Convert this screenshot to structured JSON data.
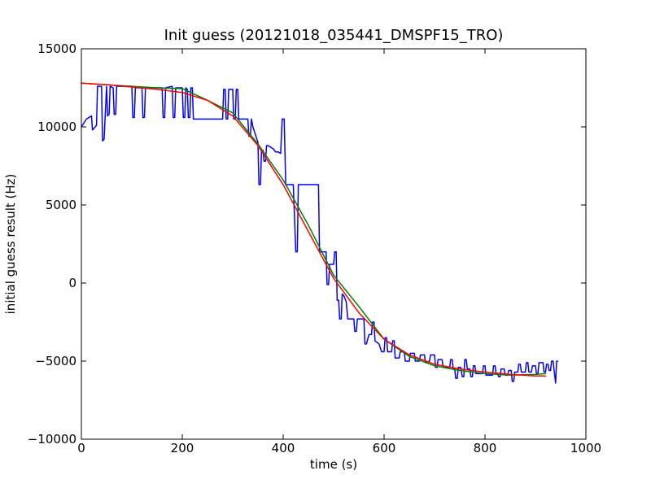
{
  "chart_data": {
    "type": "line",
    "title": "Init guess (20121018_035441_DMSPF15_TRO)",
    "xlabel": "time (s)",
    "ylabel": "initial guess result (Hz)",
    "xlim": [
      0,
      1000
    ],
    "ylim": [
      -10000,
      15000
    ],
    "x_ticks": [
      0,
      200,
      400,
      600,
      800,
      1000
    ],
    "y_ticks": [
      -10000,
      -5000,
      0,
      5000,
      10000,
      15000
    ],
    "x_tick_labels": [
      "0",
      "200",
      "400",
      "600",
      "800",
      "1000"
    ],
    "y_tick_labels": [
      "−10000",
      "−5000",
      "0",
      "5000",
      "10000",
      "15000"
    ],
    "grid": false,
    "legend": "none",
    "colors": {
      "blue": "#0000ff",
      "green": "#008000",
      "red": "#ff0000",
      "axes": "#000000",
      "background": "#ffffff"
    },
    "series": [
      {
        "color": "#0000ff",
        "points": [
          [
            0,
            10000
          ],
          [
            10,
            10500
          ],
          [
            20,
            10700
          ],
          [
            22,
            9800
          ],
          [
            30,
            10100
          ],
          [
            32,
            12600
          ],
          [
            40,
            12600
          ],
          [
            42,
            9100
          ],
          [
            45,
            9200
          ],
          [
            50,
            12600
          ],
          [
            52,
            10700
          ],
          [
            55,
            10800
          ],
          [
            57,
            12600
          ],
          [
            63,
            12500
          ],
          [
            65,
            10800
          ],
          [
            68,
            10800
          ],
          [
            70,
            12600
          ],
          [
            100,
            12600
          ],
          [
            102,
            10600
          ],
          [
            105,
            10600
          ],
          [
            107,
            12500
          ],
          [
            120,
            12500
          ],
          [
            122,
            10600
          ],
          [
            125,
            10600
          ],
          [
            127,
            12500
          ],
          [
            160,
            12500
          ],
          [
            162,
            10600
          ],
          [
            165,
            10600
          ],
          [
            167,
            12500
          ],
          [
            180,
            12600
          ],
          [
            182,
            10600
          ],
          [
            185,
            10600
          ],
          [
            187,
            12500
          ],
          [
            200,
            12500
          ],
          [
            202,
            10600
          ],
          [
            205,
            10600
          ],
          [
            207,
            12500
          ],
          [
            210,
            12400
          ],
          [
            212,
            10600
          ],
          [
            215,
            10600
          ],
          [
            217,
            12500
          ],
          [
            220,
            12500
          ],
          [
            222,
            10500
          ],
          [
            280,
            10500
          ],
          [
            282,
            12400
          ],
          [
            285,
            12400
          ],
          [
            287,
            10500
          ],
          [
            290,
            10500
          ],
          [
            292,
            12400
          ],
          [
            300,
            12400
          ],
          [
            302,
            10500
          ],
          [
            305,
            10500
          ],
          [
            307,
            12400
          ],
          [
            310,
            12400
          ],
          [
            312,
            10500
          ],
          [
            330,
            10500
          ],
          [
            332,
            9400
          ],
          [
            335,
            9400
          ],
          [
            337,
            10500
          ],
          [
            340,
            10000
          ],
          [
            350,
            9000
          ],
          [
            352,
            6300
          ],
          [
            355,
            6300
          ],
          [
            357,
            8500
          ],
          [
            360,
            8500
          ],
          [
            362,
            7800
          ],
          [
            365,
            7800
          ],
          [
            367,
            8800
          ],
          [
            370,
            8800
          ],
          [
            380,
            8600
          ],
          [
            385,
            8400
          ],
          [
            390,
            8400
          ],
          [
            395,
            8300
          ],
          [
            398,
            10500
          ],
          [
            402,
            10500
          ],
          [
            405,
            6300
          ],
          [
            420,
            6300
          ],
          [
            425,
            2000
          ],
          [
            428,
            2000
          ],
          [
            430,
            6300
          ],
          [
            470,
            6300
          ],
          [
            472,
            2000
          ],
          [
            485,
            2000
          ],
          [
            487,
            -100
          ],
          [
            490,
            -100
          ],
          [
            492,
            1200
          ],
          [
            500,
            1200
          ],
          [
            502,
            2000
          ],
          [
            505,
            2000
          ],
          [
            507,
            -1100
          ],
          [
            510,
            -1100
          ],
          [
            512,
            -2300
          ],
          [
            515,
            -2300
          ],
          [
            517,
            -700
          ],
          [
            520,
            -800
          ],
          [
            525,
            -1200
          ],
          [
            528,
            -2300
          ],
          [
            540,
            -2300
          ],
          [
            542,
            -3100
          ],
          [
            545,
            -3100
          ],
          [
            547,
            -2300
          ],
          [
            560,
            -2300
          ],
          [
            562,
            -3900
          ],
          [
            565,
            -3900
          ],
          [
            570,
            -3300
          ],
          [
            575,
            -3300
          ],
          [
            577,
            -2500
          ],
          [
            580,
            -2500
          ],
          [
            582,
            -3700
          ],
          [
            590,
            -3900
          ],
          [
            595,
            -4400
          ],
          [
            600,
            -4400
          ],
          [
            602,
            -3500
          ],
          [
            605,
            -3500
          ],
          [
            607,
            -4400
          ],
          [
            615,
            -4400
          ],
          [
            617,
            -3700
          ],
          [
            620,
            -3700
          ],
          [
            622,
            -4800
          ],
          [
            630,
            -4800
          ],
          [
            632,
            -4400
          ],
          [
            640,
            -4400
          ],
          [
            642,
            -5000
          ],
          [
            650,
            -5000
          ],
          [
            652,
            -4500
          ],
          [
            660,
            -4500
          ],
          [
            662,
            -5000
          ],
          [
            670,
            -5000
          ],
          [
            672,
            -4600
          ],
          [
            680,
            -4600
          ],
          [
            682,
            -5100
          ],
          [
            690,
            -5000
          ],
          [
            692,
            -4600
          ],
          [
            700,
            -4600
          ],
          [
            702,
            -5400
          ],
          [
            705,
            -5400
          ],
          [
            707,
            -4900
          ],
          [
            715,
            -4900
          ],
          [
            717,
            -5400
          ],
          [
            730,
            -5400
          ],
          [
            732,
            -4900
          ],
          [
            735,
            -4900
          ],
          [
            737,
            -5500
          ],
          [
            740,
            -5500
          ],
          [
            742,
            -6100
          ],
          [
            745,
            -6100
          ],
          [
            747,
            -5400
          ],
          [
            752,
            -5400
          ],
          [
            755,
            -6000
          ],
          [
            758,
            -6000
          ],
          [
            760,
            -4900
          ],
          [
            763,
            -4900
          ],
          [
            765,
            -5500
          ],
          [
            770,
            -5500
          ],
          [
            772,
            -6000
          ],
          [
            775,
            -6000
          ],
          [
            777,
            -5300
          ],
          [
            780,
            -5300
          ],
          [
            782,
            -5800
          ],
          [
            795,
            -5800
          ],
          [
            797,
            -5300
          ],
          [
            800,
            -5300
          ],
          [
            802,
            -5900
          ],
          [
            815,
            -5900
          ],
          [
            817,
            -5300
          ],
          [
            820,
            -5300
          ],
          [
            822,
            -5800
          ],
          [
            825,
            -5800
          ],
          [
            827,
            -6000
          ],
          [
            830,
            -6000
          ],
          [
            832,
            -5500
          ],
          [
            838,
            -5500
          ],
          [
            840,
            -5900
          ],
          [
            845,
            -5900
          ],
          [
            847,
            -5600
          ],
          [
            852,
            -5600
          ],
          [
            854,
            -6300
          ],
          [
            857,
            -6300
          ],
          [
            859,
            -5700
          ],
          [
            865,
            -5700
          ],
          [
            867,
            -5200
          ],
          [
            870,
            -5200
          ],
          [
            872,
            -5700
          ],
          [
            880,
            -5700
          ],
          [
            882,
            -5100
          ],
          [
            885,
            -5100
          ],
          [
            887,
            -5700
          ],
          [
            892,
            -5700
          ],
          [
            894,
            -5300
          ],
          [
            900,
            -5300
          ],
          [
            902,
            -5800
          ],
          [
            905,
            -5800
          ],
          [
            907,
            -5100
          ],
          [
            915,
            -5100
          ],
          [
            917,
            -5700
          ],
          [
            920,
            -5700
          ],
          [
            922,
            -5200
          ],
          [
            925,
            -5200
          ],
          [
            927,
            -5600
          ],
          [
            930,
            -5600
          ],
          [
            932,
            -5000
          ],
          [
            935,
            -5000
          ],
          [
            937,
            -5600
          ],
          [
            940,
            -6400
          ],
          [
            942,
            -5000
          ],
          [
            944,
            -5000
          ]
        ]
      },
      {
        "color": "#008000",
        "points": [
          [
            0,
            12800
          ],
          [
            50,
            12700
          ],
          [
            100,
            12600
          ],
          [
            150,
            12500
          ],
          [
            200,
            12450
          ],
          [
            250,
            11700
          ],
          [
            300,
            10900
          ],
          [
            350,
            8900
          ],
          [
            400,
            6600
          ],
          [
            450,
            3700
          ],
          [
            500,
            500
          ],
          [
            550,
            -1500
          ],
          [
            600,
            -3600
          ],
          [
            650,
            -4700
          ],
          [
            700,
            -5300
          ],
          [
            750,
            -5600
          ],
          [
            800,
            -5800
          ],
          [
            850,
            -5900
          ],
          [
            900,
            -5850
          ],
          [
            920,
            -5800
          ]
        ]
      },
      {
        "color": "#ff0000",
        "points": [
          [
            0,
            12800
          ],
          [
            50,
            12700
          ],
          [
            100,
            12550
          ],
          [
            150,
            12400
          ],
          [
            200,
            12200
          ],
          [
            250,
            11700
          ],
          [
            300,
            10700
          ],
          [
            350,
            8800
          ],
          [
            400,
            6300
          ],
          [
            450,
            3300
          ],
          [
            500,
            300
          ],
          [
            550,
            -1900
          ],
          [
            600,
            -3600
          ],
          [
            650,
            -4600
          ],
          [
            700,
            -5200
          ],
          [
            750,
            -5500
          ],
          [
            800,
            -5700
          ],
          [
            850,
            -5850
          ],
          [
            900,
            -5950
          ],
          [
            920,
            -5950
          ]
        ]
      }
    ]
  }
}
